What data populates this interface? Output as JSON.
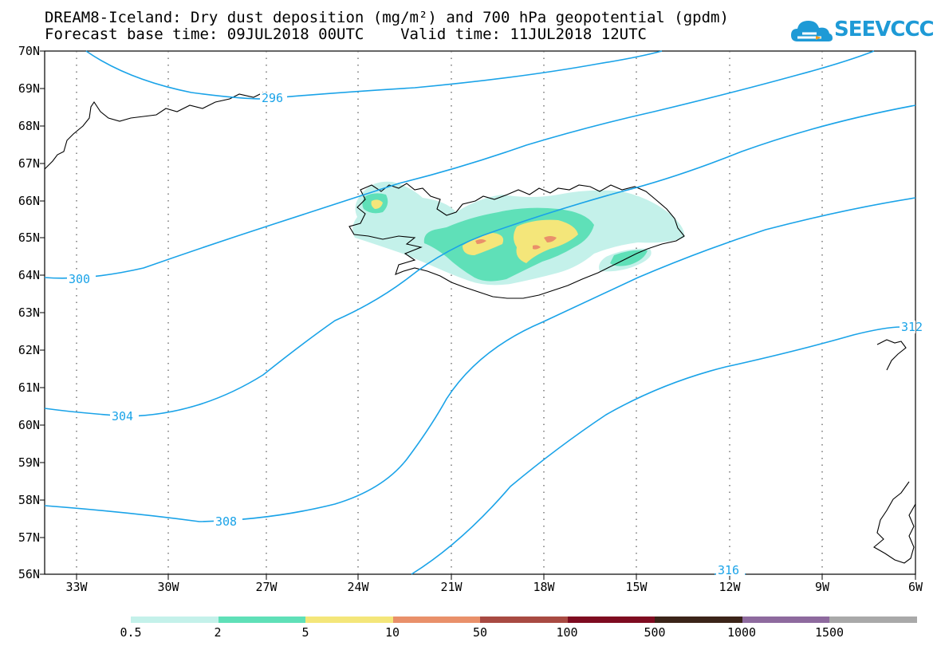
{
  "title": {
    "line1": "DREAM8-Iceland: Dry dust deposition (mg/m²) and 700 hPa geopotential (gpdm)",
    "line2": "Forecast base time: 09JUL2018 00UTC    Valid time: 11JUL2018 12UTC"
  },
  "logo": {
    "text": "SEEVCCC",
    "icon": "cloud-logo-icon",
    "color": "#1e9ad6"
  },
  "axes": {
    "lat_labels": [
      "70N",
      "69N",
      "68N",
      "67N",
      "66N",
      "65N",
      "64N",
      "63N",
      "62N",
      "61N",
      "60N",
      "59N",
      "58N",
      "57N",
      "56N"
    ],
    "lon_labels": [
      "33W",
      "30W",
      "27W",
      "24W",
      "21W",
      "18W",
      "15W",
      "12W",
      "9W",
      "6W"
    ],
    "lat_range": [
      56,
      70
    ],
    "lon_range": [
      -34.5,
      -6
    ]
  },
  "contours": {
    "color": "#1aa3e8",
    "labels": [
      "296",
      "300",
      "304",
      "308",
      "312",
      "316"
    ]
  },
  "legend": {
    "colors": [
      "#c4f1ea",
      "#5fe0b8",
      "#f4e67a",
      "#e9906a",
      "#a84a42",
      "#7e0b20",
      "#3b2418",
      "#8e6a9e",
      "#a9a9a9"
    ],
    "labels": [
      "0.5",
      "2",
      "5",
      "10",
      "50",
      "100",
      "500",
      "1000",
      "1500"
    ]
  }
}
